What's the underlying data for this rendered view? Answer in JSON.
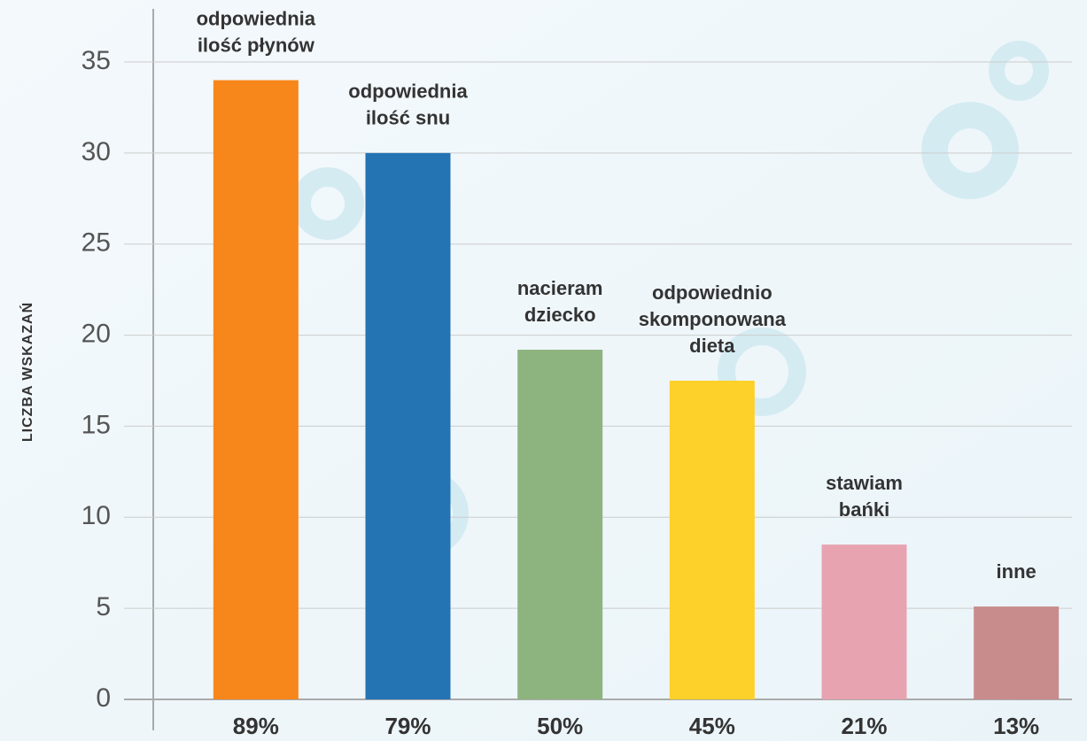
{
  "chart_data": {
    "type": "bar",
    "y_label": "LICZBA WSKAZAŃ",
    "categories": [
      [
        "odpowiednia",
        "ilość płynów"
      ],
      [
        "odpowiednia",
        "ilość snu"
      ],
      [
        "nacieram",
        "dziecko"
      ],
      [
        "odpowiednio",
        "skomponowana",
        "dieta"
      ],
      [
        "stawiam",
        "bańki"
      ],
      [
        "inne"
      ]
    ],
    "values": [
      34,
      30,
      19.2,
      17.5,
      8.5,
      5.1
    ],
    "colors": [
      "#f7861b",
      "#2474b4",
      "#8db47e",
      "#fdd02a",
      "#e8a3b1",
      "#c98c8c"
    ],
    "bottom_labels": [
      "89%",
      "79%",
      "50%",
      "45%",
      "21%",
      "13%"
    ],
    "ylim": [
      0,
      35
    ],
    "yticks": [
      0,
      5,
      10,
      15,
      20,
      25,
      30,
      35
    ],
    "grid": true
  }
}
